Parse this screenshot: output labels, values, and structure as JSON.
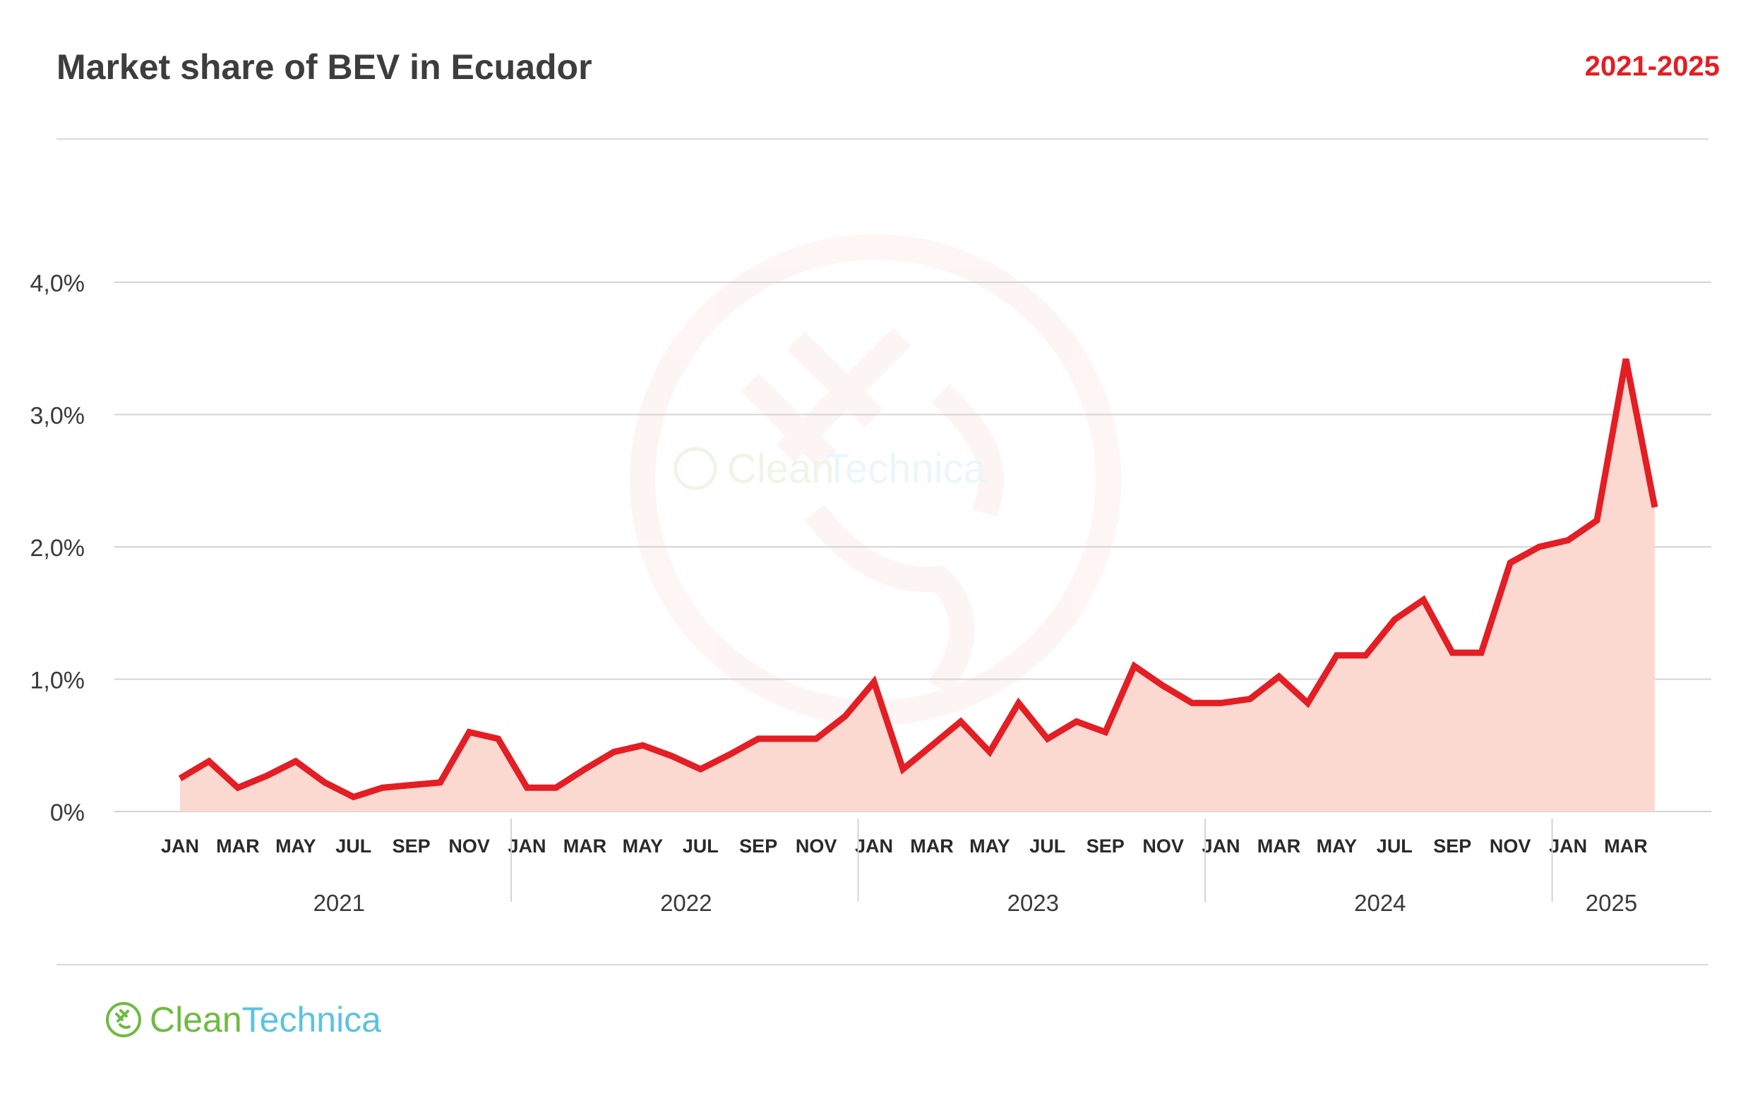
{
  "header": {
    "title": "Market share of BEV in Ecuador",
    "period": "2021-2025"
  },
  "colors": {
    "line": "#e31e24",
    "fill": "#fcd9d0",
    "grid": "#d4d4d4",
    "axis_text": "#3a3a3a",
    "period": "#e31e24"
  },
  "watermark": {
    "brand_clean": "Clean",
    "brand_technica": "Technica",
    "icon": "plug-icon"
  },
  "footer": {
    "brand_clean": "Clean",
    "brand_technica": "Technica",
    "icon": "plug-icon"
  },
  "chart_data": {
    "type": "area",
    "title": "Market share of BEV in Ecuador",
    "subtitle": "2021-2025",
    "ylim": [
      0,
      4.0
    ],
    "yticks": [
      {
        "value": 0,
        "label": "0%"
      },
      {
        "value": 1.0,
        "label": "1,0%"
      },
      {
        "value": 2.0,
        "label": "2,0%"
      },
      {
        "value": 3.0,
        "label": "3,0%"
      },
      {
        "value": 4.0,
        "label": "4,0%"
      }
    ],
    "grid": true,
    "x": [
      "2021-01",
      "2021-02",
      "2021-03",
      "2021-04",
      "2021-05",
      "2021-06",
      "2021-07",
      "2021-08",
      "2021-09",
      "2021-10",
      "2021-11",
      "2021-12",
      "2022-01",
      "2022-02",
      "2022-03",
      "2022-04",
      "2022-05",
      "2022-06",
      "2022-07",
      "2022-08",
      "2022-09",
      "2022-10",
      "2022-11",
      "2022-12",
      "2023-01",
      "2023-02",
      "2023-03",
      "2023-04",
      "2023-05",
      "2023-06",
      "2023-07",
      "2023-08",
      "2023-09",
      "2023-10",
      "2023-11",
      "2023-12",
      "2024-01",
      "2024-02",
      "2024-03",
      "2024-04",
      "2024-05",
      "2024-06",
      "2024-07",
      "2024-08",
      "2024-09",
      "2024-10",
      "2024-11",
      "2024-12",
      "2025-01",
      "2025-02",
      "2025-03",
      "2025-04"
    ],
    "values": [
      0.25,
      0.38,
      0.18,
      0.27,
      0.38,
      0.22,
      0.11,
      0.18,
      0.2,
      0.22,
      0.6,
      0.55,
      0.18,
      0.18,
      0.32,
      0.45,
      0.5,
      0.42,
      0.32,
      0.43,
      0.55,
      0.55,
      0.55,
      0.72,
      0.98,
      0.32,
      0.5,
      0.68,
      0.45,
      0.82,
      0.55,
      0.68,
      0.6,
      1.1,
      0.95,
      0.82,
      0.82,
      0.85,
      1.02,
      0.82,
      1.18,
      1.18,
      1.45,
      1.6,
      1.2,
      1.2,
      1.88,
      2.0,
      2.05,
      2.2,
      3.42,
      2.3
    ],
    "month_labels": [
      {
        "label": "JAN",
        "index": 0
      },
      {
        "label": "MAR",
        "index": 2
      },
      {
        "label": "MAY",
        "index": 4
      },
      {
        "label": "JUL",
        "index": 6
      },
      {
        "label": "SEP",
        "index": 8
      },
      {
        "label": "NOV",
        "index": 10
      },
      {
        "label": "JAN",
        "index": 12
      },
      {
        "label": "MAR",
        "index": 14
      },
      {
        "label": "MAY",
        "index": 16
      },
      {
        "label": "JUL",
        "index": 18
      },
      {
        "label": "SEP",
        "index": 20
      },
      {
        "label": "NOV",
        "index": 22
      },
      {
        "label": "JAN",
        "index": 24
      },
      {
        "label": "MAR",
        "index": 26
      },
      {
        "label": "MAY",
        "index": 28
      },
      {
        "label": "JUL",
        "index": 30
      },
      {
        "label": "SEP",
        "index": 32
      },
      {
        "label": "NOV",
        "index": 34
      },
      {
        "label": "JAN",
        "index": 36
      },
      {
        "label": "MAR",
        "index": 38
      },
      {
        "label": "MAY",
        "index": 40
      },
      {
        "label": "JUL",
        "index": 42
      },
      {
        "label": "SEP",
        "index": 44
      },
      {
        "label": "NOV",
        "index": 46
      },
      {
        "label": "JAN",
        "index": 48
      },
      {
        "label": "MAR",
        "index": 50
      }
    ],
    "years": [
      {
        "label": "2021",
        "start": 0,
        "end": 11
      },
      {
        "label": "2022",
        "start": 12,
        "end": 23
      },
      {
        "label": "2023",
        "start": 24,
        "end": 35
      },
      {
        "label": "2024",
        "start": 36,
        "end": 47
      },
      {
        "label": "2025",
        "start": 48,
        "end": 51
      }
    ]
  }
}
